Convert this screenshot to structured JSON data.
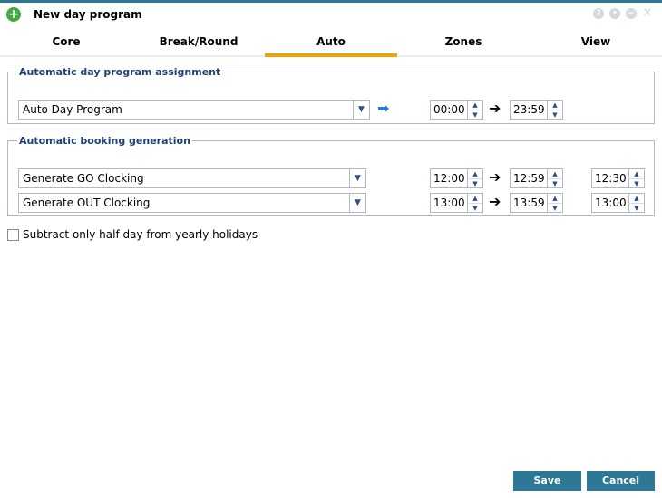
{
  "window": {
    "title": "New day program",
    "buttons": [
      "help",
      "pin",
      "minimize",
      "close"
    ]
  },
  "tabs": [
    {
      "label": "Core"
    },
    {
      "label": "Break/Round"
    },
    {
      "label": "Auto",
      "active": true
    },
    {
      "label": "Zones"
    },
    {
      "label": "View"
    }
  ],
  "auto_assignment": {
    "legend": "Automatic day program assignment",
    "program": "Auto Day Program",
    "from": "00:00",
    "to": "23:59"
  },
  "booking_generation": {
    "legend": "Automatic booking generation",
    "rows": [
      {
        "type": "Generate GO Clocking",
        "from": "12:00",
        "to": "12:59",
        "time": "12:30"
      },
      {
        "type": "Generate OUT Clocking",
        "from": "13:00",
        "to": "13:59",
        "time": "13:00"
      }
    ]
  },
  "half_day": {
    "label": "Subtract only half day from yearly holidays",
    "checked": false
  },
  "footer": {
    "save": "Save",
    "cancel": "Cancel"
  },
  "colors": {
    "accent": "#f5a100",
    "button": "#2d7896",
    "topbar": "#2a7793"
  }
}
